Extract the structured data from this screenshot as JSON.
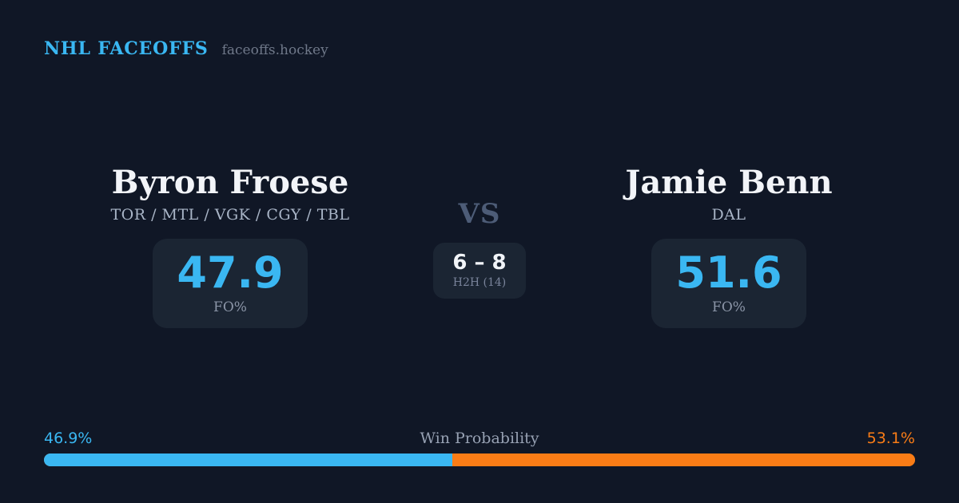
{
  "header": {
    "brand": "NHL FACEOFFS",
    "site": "faceoffs.hockey"
  },
  "player_left": {
    "name": "Byron Froese",
    "teams": "TOR / MTL / VGK / CGY / TBL",
    "stat_value": "47.9",
    "stat_label": "FO%"
  },
  "versus": {
    "label": "VS",
    "h2h_score": "6 – 8",
    "h2h_label": "H2H (14)"
  },
  "player_right": {
    "name": "Jamie Benn",
    "teams": "DAL",
    "stat_value": "51.6",
    "stat_label": "FO%"
  },
  "win_probability": {
    "title": "Win Probability",
    "left_pct": "46.9%",
    "right_pct": "53.1%"
  },
  "colors": {
    "background": "#101726",
    "card": "#1b2533",
    "accent_blue": "#3ab7f2",
    "accent_orange": "#f97c16"
  }
}
